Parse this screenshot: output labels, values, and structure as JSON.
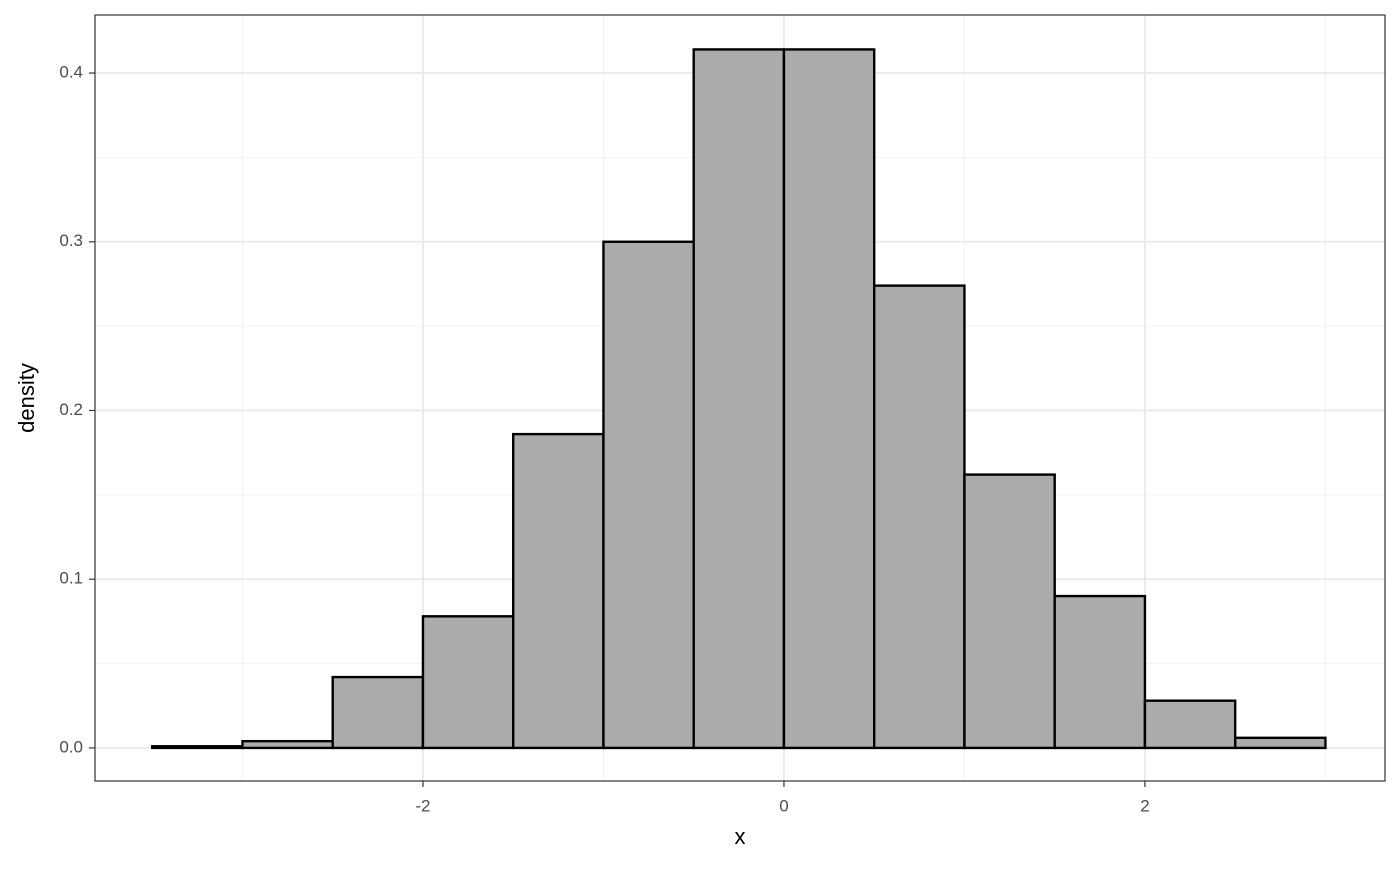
{
  "chart_data": {
    "type": "histogram",
    "x_label": "x",
    "y_label": "density",
    "bins": [
      -3.5,
      -3.0,
      -2.5,
      -2.0,
      -1.5,
      -1.0,
      -0.5,
      0.0,
      0.5,
      1.0,
      1.5,
      2.0,
      2.5,
      3.0
    ],
    "values": [
      0.001,
      0.004,
      0.042,
      0.078,
      0.186,
      0.3,
      0.414,
      0.414,
      0.274,
      0.162,
      0.09,
      0.028,
      0.006
    ],
    "color": "#ababab",
    "edge_color": "#000000",
    "xlim": [
      -3.817,
      3.33
    ],
    "ylim": [
      -0.0196,
      0.4344
    ],
    "xticks": [
      -2,
      0,
      2
    ],
    "yticks": [
      {
        "value": 0,
        "label": "0.0"
      },
      0.1,
      0.2,
      0.3,
      0.4
    ],
    "x_minor_grid": [
      -3,
      -1,
      1,
      3
    ],
    "y_minor_grid": [
      0.05,
      0.15,
      0.25,
      0.35
    ],
    "grid": true
  }
}
